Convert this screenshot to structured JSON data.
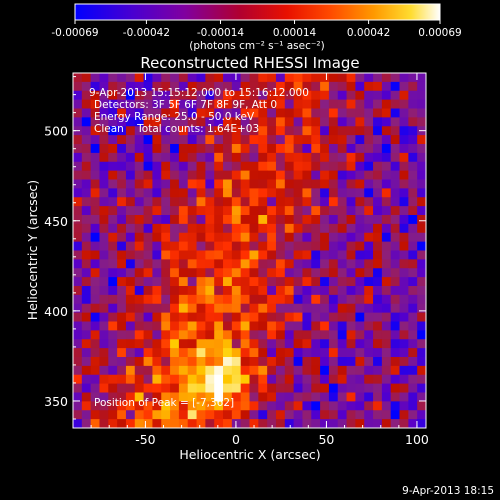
{
  "chart_data": {
    "type": "heatmap",
    "title": "Reconstructed RHESSI Image",
    "xlabel": "Heliocentric X (arcsec)",
    "ylabel": "Heliocentric Y (arcsec)",
    "xlim": [
      -90,
      105
    ],
    "ylim": [
      335,
      532
    ],
    "x_ticks": [
      -50,
      0,
      50,
      100
    ],
    "y_ticks": [
      350,
      400,
      450,
      500
    ],
    "colorbar": {
      "range": [
        -0.00069,
        0.00069
      ],
      "tick_values": [
        -0.00069,
        -0.00042,
        -0.00014,
        0.00014,
        0.00042,
        0.00069
      ],
      "tick_labels": [
        "-0.00069",
        "-0.00042",
        "-0.00014",
        "0.00014",
        "0.00042",
        "0.00069"
      ],
      "unit_label": "(photons cm⁻² s⁻¹ asec⁻²)"
    },
    "annotations": [
      "9-Apr-2013 15:15:12.000 to 15:16:12.000",
      "Detectors: 3F 5F 6F 7F 8F 9F, Att 0",
      "Energy Range: 25.0 - 50.0 keV",
      "Clean    Total counts: 1.64E+03"
    ],
    "peak_label": "Position of Peak = [-7,362]",
    "peak_position": [
      -7,
      362
    ],
    "footer_date": "9-Apr-2013 18:15"
  },
  "colors": {
    "background": "#000000",
    "axes": "#ffffff",
    "colormap": [
      "#0000ff",
      "#5a00c8",
      "#8a2080",
      "#c01000",
      "#ff3000",
      "#ff8a00",
      "#ffd000",
      "#ffffff"
    ]
  }
}
